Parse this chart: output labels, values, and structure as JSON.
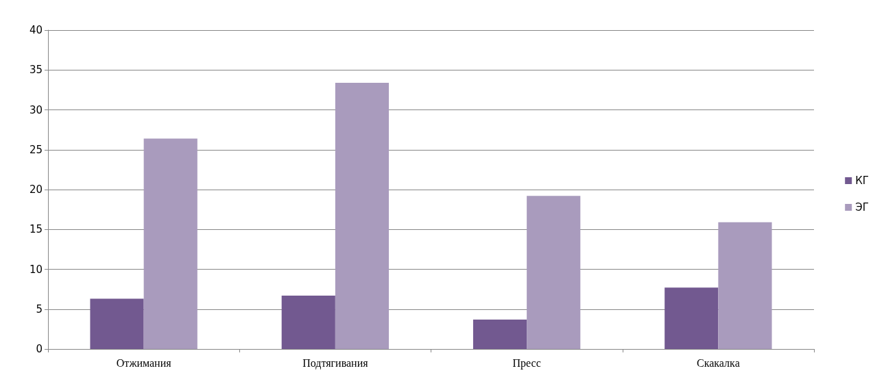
{
  "chart_data": {
    "type": "bar",
    "categories": [
      "Отжимания",
      "Подтягивания",
      "Пресс",
      "Скакалка"
    ],
    "series": [
      {
        "name": "КГ",
        "color": "#725990",
        "values": [
          6.3,
          6.7,
          3.7,
          7.7
        ]
      },
      {
        "name": "ЭГ",
        "color": "#a99bbd",
        "values": [
          26.4,
          33.4,
          19.2,
          15.9
        ]
      }
    ],
    "ylim": [
      0,
      40
    ],
    "yticks": [
      0,
      5,
      10,
      15,
      20,
      25,
      30,
      35,
      40
    ],
    "grid": "y",
    "legend": "right"
  }
}
